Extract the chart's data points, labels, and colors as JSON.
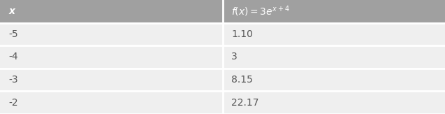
{
  "header_bg_color": "#a0a0a0",
  "row_bg_color": "#efefef",
  "border_color": "#ffffff",
  "header_text_color": "#ffffff",
  "row_text_color": "#555555",
  "col1_header": "x",
  "col2_header": "$f(x)=3e^{x+4}$",
  "rows": [
    [
      "-5",
      "1.10"
    ],
    [
      "-4",
      "3"
    ],
    [
      "-3",
      "8.15"
    ],
    [
      "-2",
      "22.17"
    ]
  ],
  "col_split": 0.5,
  "figsize": [
    6.37,
    1.63
  ],
  "dpi": 100
}
